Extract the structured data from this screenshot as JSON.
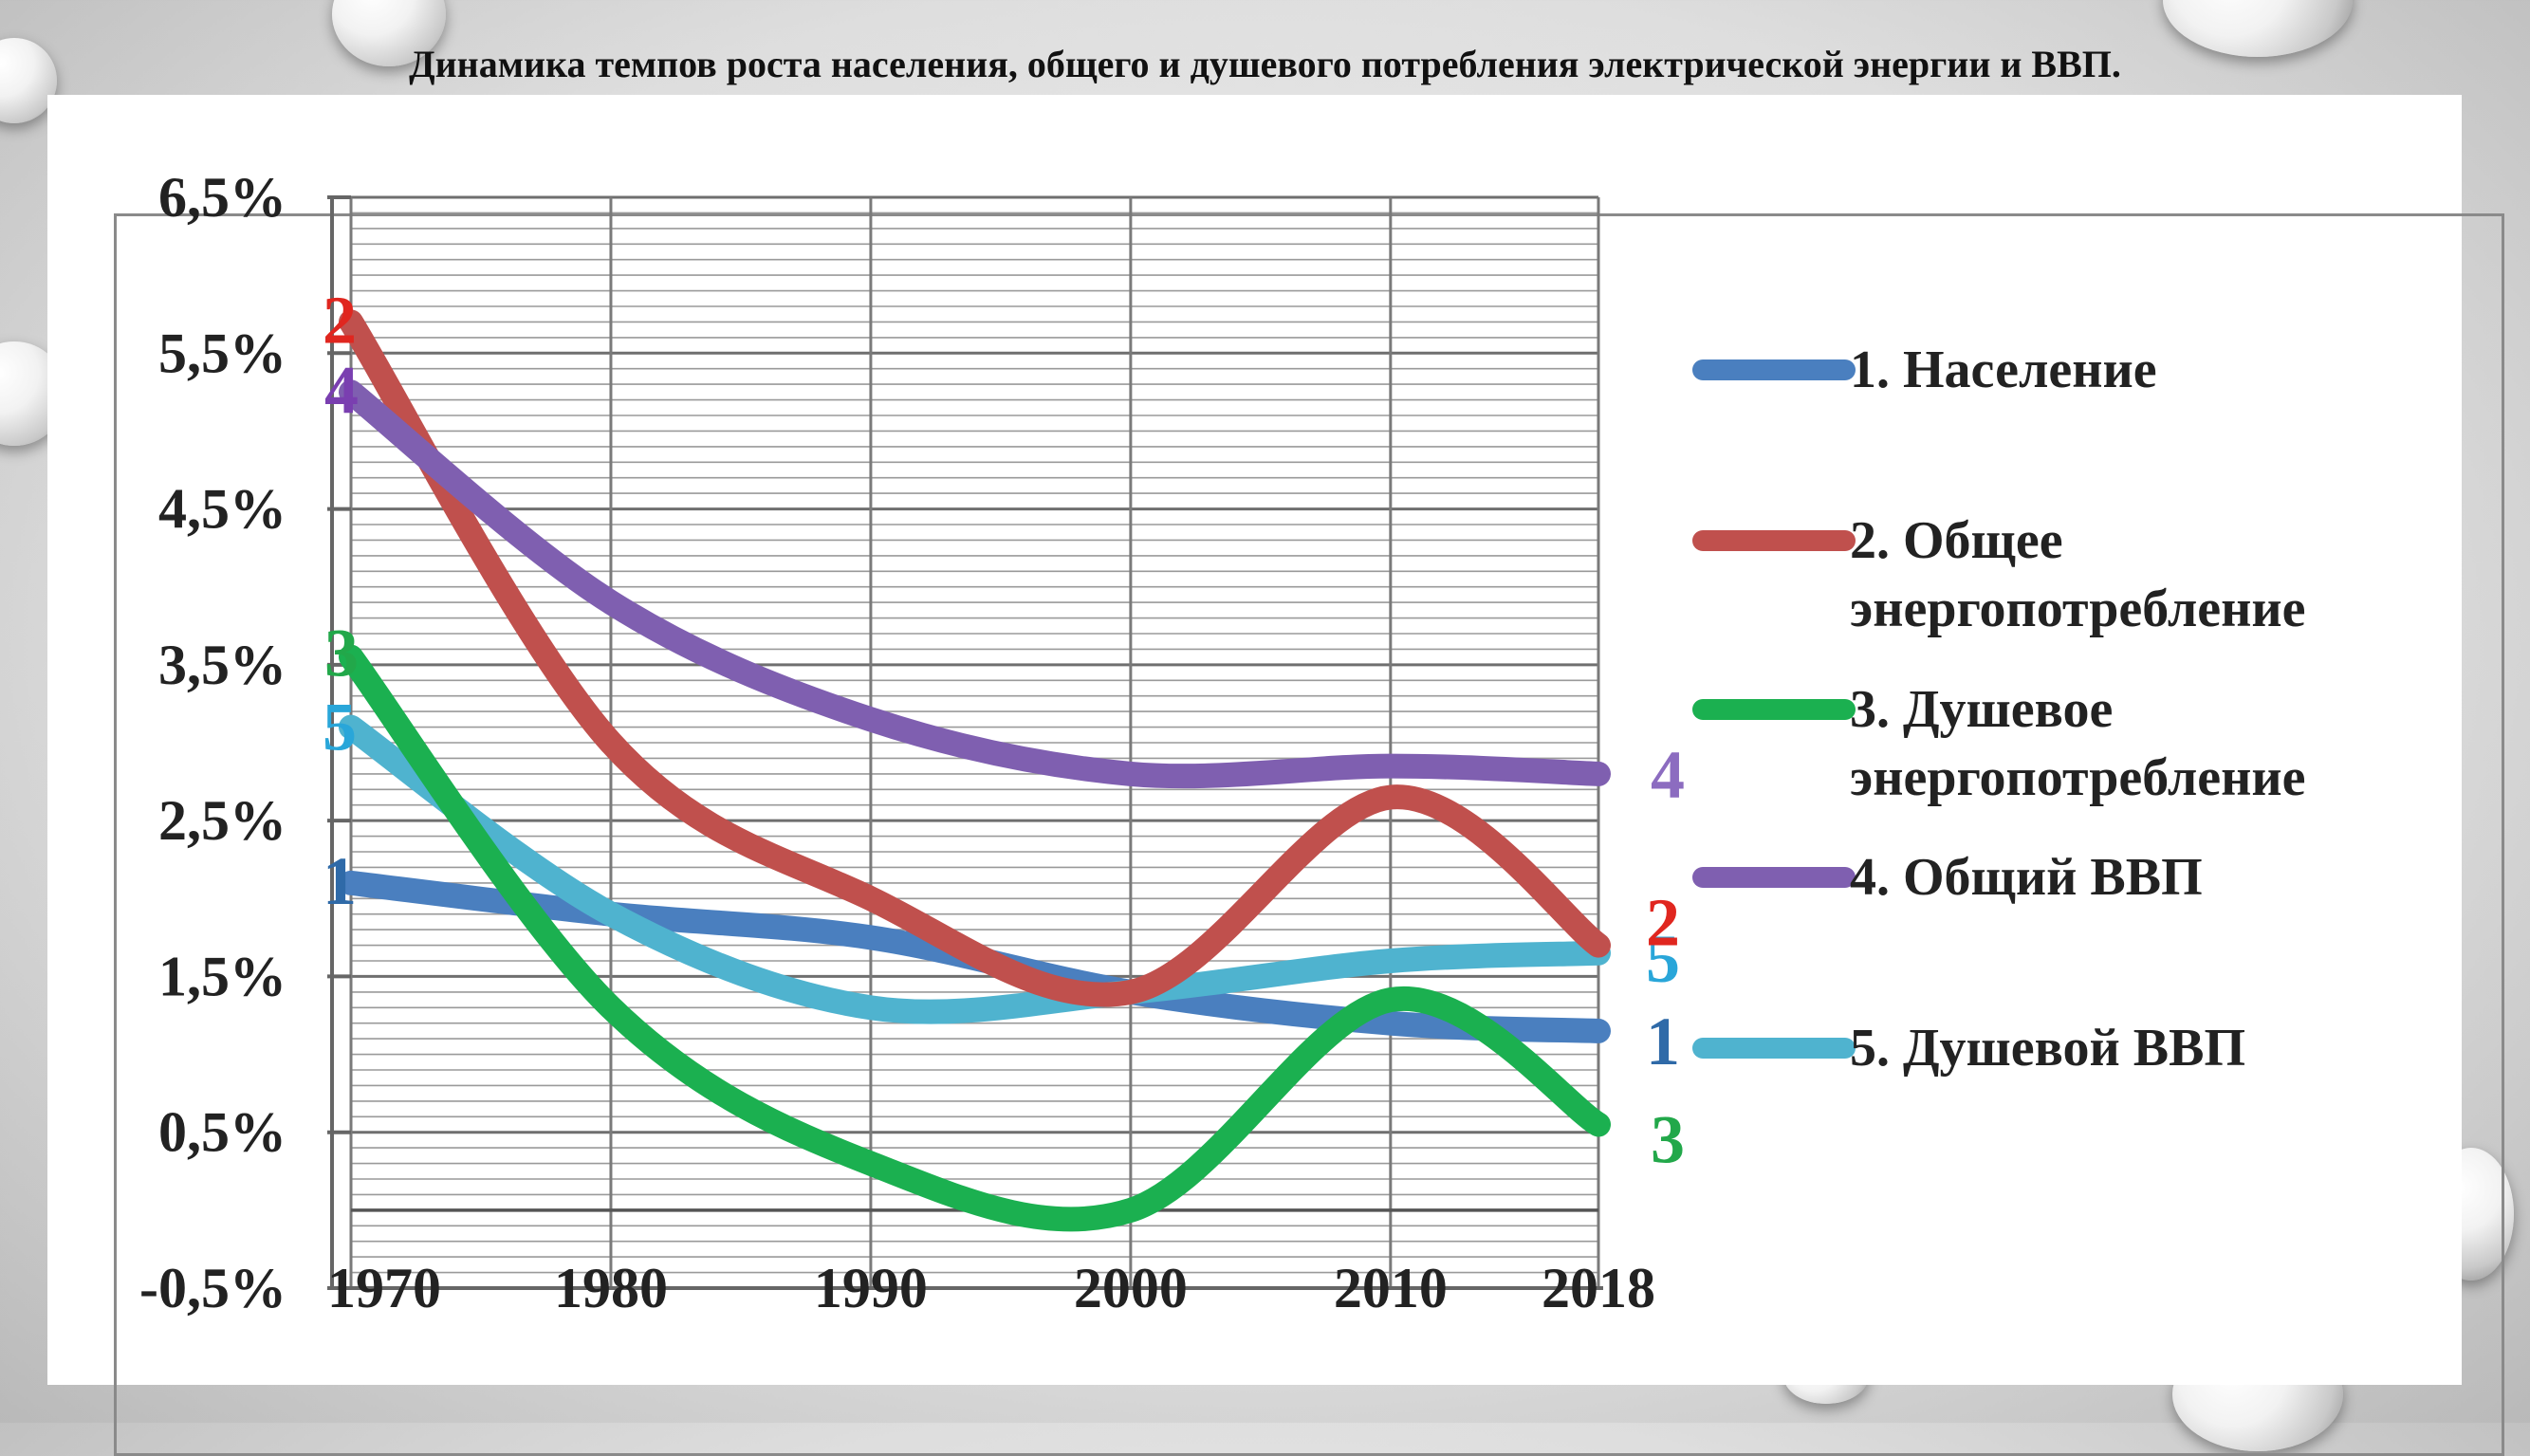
{
  "title": "Динамика темпов роста населения, общего и душевого потребления электрической энергии и ВВП.",
  "chart_data": {
    "type": "line",
    "title": "Динамика темпов роста населения, общего и душевого потребления электрической энергии и ВВП.",
    "xlabel": "",
    "ylabel": "",
    "categories": [
      "1970",
      "1980",
      "1990",
      "2000",
      "2010",
      "2018"
    ],
    "x": [
      1970,
      1980,
      1990,
      2000,
      2010,
      2018
    ],
    "ylim": [
      -0.5,
      6.5
    ],
    "y_ticks": [
      -0.5,
      0.5,
      1.5,
      2.5,
      3.5,
      4.5,
      5.5,
      6.5
    ],
    "y_tick_labels": [
      "-0,5%",
      "0,5%",
      "1,5%",
      "2,5%",
      "3,5%",
      "4,5%",
      "5,5%",
      "6,5%"
    ],
    "grid": true,
    "legend_position": "right",
    "series": [
      {
        "name": "1. Население",
        "marker": "1",
        "color": "#4a7fbf",
        "values": [
          2.1,
          1.9,
          1.75,
          1.4,
          1.2,
          1.15
        ]
      },
      {
        "name": "2. Общее энергопотребление",
        "marker": "2",
        "color": "#c0504d",
        "values": [
          5.7,
          3.0,
          2.0,
          1.4,
          2.65,
          1.7
        ]
      },
      {
        "name": "3. Душевое энергопотребление",
        "marker": "3",
        "color": "#1bb050",
        "values": [
          3.55,
          1.3,
          0.3,
          0.0,
          1.35,
          0.55
        ]
      },
      {
        "name": "4. Общий ВВП",
        "marker": "4",
        "color": "#7f5fb0",
        "values": [
          5.25,
          3.9,
          3.15,
          2.8,
          2.85,
          2.8
        ]
      },
      {
        "name": "5. Душевой ВВП",
        "marker": "5",
        "color": "#4fb3cf",
        "values": [
          3.1,
          1.9,
          1.3,
          1.4,
          1.6,
          1.65
        ]
      }
    ],
    "start_label_colors": [
      "#2f6aa8",
      "#e0261f",
      "#22a84a",
      "#7a3fb0",
      "#29a6d9"
    ],
    "end_label_colors": [
      "#2f6aa8",
      "#e0261f",
      "#22a84a",
      "#8c6cc0",
      "#29a6d9"
    ]
  }
}
